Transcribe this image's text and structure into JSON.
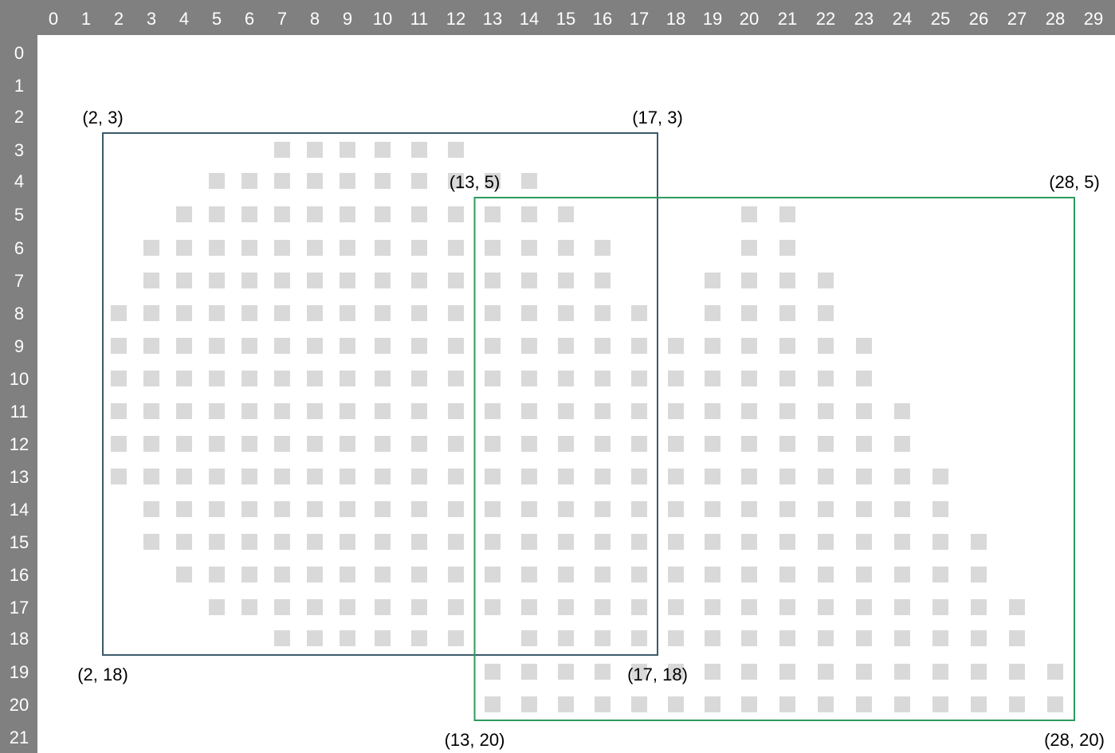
{
  "grid": {
    "columns": [
      "0",
      "1",
      "2",
      "3",
      "4",
      "5",
      "6",
      "7",
      "8",
      "9",
      "10",
      "11",
      "12",
      "13",
      "14",
      "15",
      "16",
      "17",
      "18",
      "19",
      "20",
      "21",
      "22",
      "23",
      "24",
      "25",
      "26",
      "27",
      "28",
      "29"
    ],
    "rows": [
      "0",
      "1",
      "2",
      "3",
      "4",
      "5",
      "6",
      "7",
      "8",
      "9",
      "10",
      "11",
      "12",
      "13",
      "14",
      "15",
      "16",
      "17",
      "18",
      "19",
      "20",
      "21"
    ],
    "filled_runs": [
      {
        "row": 3,
        "cols": [
          [
            7,
            12
          ]
        ]
      },
      {
        "row": 4,
        "cols": [
          [
            5,
            14
          ]
        ]
      },
      {
        "row": 5,
        "cols": [
          [
            4,
            15
          ],
          [
            20,
            21
          ]
        ]
      },
      {
        "row": 6,
        "cols": [
          [
            3,
            16
          ],
          [
            20,
            21
          ]
        ]
      },
      {
        "row": 7,
        "cols": [
          [
            3,
            16
          ],
          [
            19,
            22
          ]
        ]
      },
      {
        "row": 8,
        "cols": [
          [
            2,
            17
          ],
          [
            19,
            22
          ]
        ]
      },
      {
        "row": 9,
        "cols": [
          [
            2,
            23
          ]
        ]
      },
      {
        "row": 10,
        "cols": [
          [
            2,
            23
          ]
        ]
      },
      {
        "row": 11,
        "cols": [
          [
            2,
            24
          ]
        ]
      },
      {
        "row": 12,
        "cols": [
          [
            2,
            24
          ]
        ]
      },
      {
        "row": 13,
        "cols": [
          [
            2,
            25
          ]
        ]
      },
      {
        "row": 14,
        "cols": [
          [
            3,
            25
          ]
        ]
      },
      {
        "row": 15,
        "cols": [
          [
            3,
            26
          ]
        ]
      },
      {
        "row": 16,
        "cols": [
          [
            4,
            26
          ]
        ]
      },
      {
        "row": 17,
        "cols": [
          [
            5,
            27
          ]
        ]
      },
      {
        "row": 18,
        "cols": [
          [
            7,
            12
          ],
          [
            14,
            27
          ]
        ]
      },
      {
        "row": 19,
        "cols": [
          [
            13,
            28
          ]
        ]
      },
      {
        "row": 20,
        "cols": [
          [
            13,
            28
          ]
        ]
      }
    ],
    "cell_color": "#d9d9d9",
    "header_color": "#808080"
  },
  "boxes": [
    {
      "name": "blue-box",
      "color": "#3a5a6a",
      "x1": 2,
      "y1": 3,
      "x2": 17,
      "y2": 18,
      "labels": {
        "tl": "(2, 3)",
        "tr": "(17, 3)",
        "bl": "(2, 18)",
        "br": "(17, 18)"
      }
    },
    {
      "name": "green-box",
      "color": "#2e9a5e",
      "x1": 13,
      "y1": 5,
      "x2": 28,
      "y2": 20,
      "labels": {
        "tl": "(13, 5)",
        "tr": "(28, 5)",
        "bl": "(13, 20)",
        "br": "(28, 20)"
      }
    }
  ]
}
